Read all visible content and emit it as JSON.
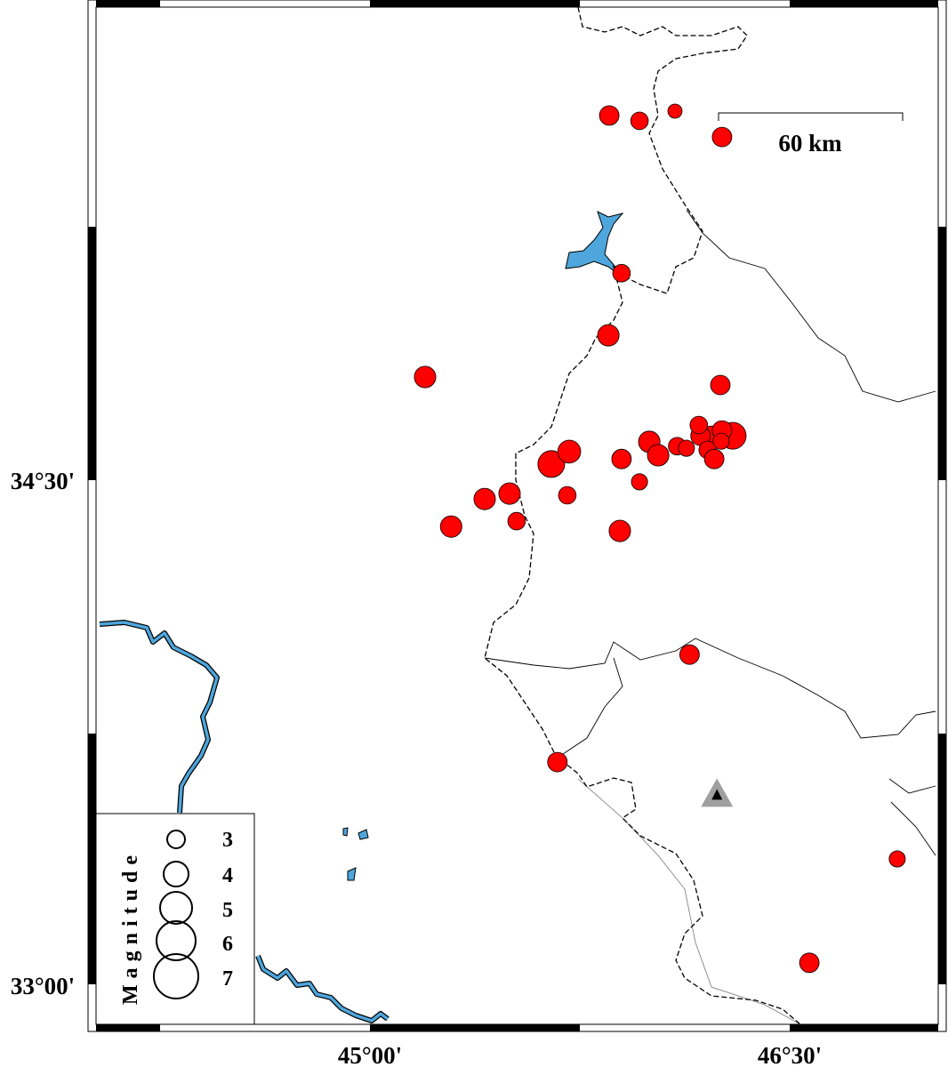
{
  "map": {
    "frame": {
      "lon_range": [
        44.0,
        47.0
      ],
      "lat_range": [
        32.88,
        35.91
      ]
    },
    "axis_labels": {
      "x": [
        {
          "lon": 45.0,
          "text": "45°00'"
        },
        {
          "lon": 46.5,
          "text": "46°30'"
        }
      ],
      "y": [
        {
          "lat": 34.5,
          "text": "34°30'"
        },
        {
          "lat": 33.0,
          "text": "33°00'"
        }
      ]
    },
    "scale_bar": {
      "label": "60 km",
      "length_km": 60
    },
    "legend": {
      "title": "Magnitude",
      "magnitudes": [
        "3",
        "4",
        "5",
        "6",
        "7"
      ]
    },
    "colors": {
      "event": "#ff0000",
      "water": "#4ea6dc",
      "station": "#a0a0a0"
    },
    "station": {
      "lon": 46.24,
      "lat": 33.565,
      "icon": "triangle-icon"
    },
    "events": [
      {
        "lon": 45.855,
        "lat": 35.585,
        "mag": 3.0
      },
      {
        "lon": 45.963,
        "lat": 35.569,
        "mag": 2.7
      },
      {
        "lon": 46.09,
        "lat": 35.598,
        "mag": 2.2
      },
      {
        "lon": 46.258,
        "lat": 35.521,
        "mag": 3.0
      },
      {
        "lon": 45.899,
        "lat": 35.116,
        "mag": 2.7
      },
      {
        "lon": 45.852,
        "lat": 34.931,
        "mag": 3.3
      },
      {
        "lon": 45.197,
        "lat": 34.807,
        "mag": 3.3
      },
      {
        "lon": 46.252,
        "lat": 34.783,
        "mag": 3.0
      },
      {
        "lon": 45.648,
        "lat": 34.548,
        "mag": 4.1
      },
      {
        "lon": 45.712,
        "lat": 34.585,
        "mag": 3.5
      },
      {
        "lon": 45.899,
        "lat": 34.563,
        "mag": 3.0
      },
      {
        "lon": 45.998,
        "lat": 34.614,
        "mag": 3.3
      },
      {
        "lon": 46.03,
        "lat": 34.574,
        "mag": 3.3
      },
      {
        "lon": 45.963,
        "lat": 34.495,
        "mag": 2.5
      },
      {
        "lon": 45.41,
        "lat": 34.444,
        "mag": 3.3
      },
      {
        "lon": 45.499,
        "lat": 34.46,
        "mag": 3.3
      },
      {
        "lon": 45.705,
        "lat": 34.455,
        "mag": 2.7
      },
      {
        "lon": 45.524,
        "lat": 34.378,
        "mag": 2.7
      },
      {
        "lon": 45.29,
        "lat": 34.362,
        "mag": 3.3
      },
      {
        "lon": 45.893,
        "lat": 34.349,
        "mag": 3.3
      },
      {
        "lon": 46.098,
        "lat": 34.601,
        "mag": 2.7
      },
      {
        "lon": 46.131,
        "lat": 34.595,
        "mag": 2.5
      },
      {
        "lon": 46.296,
        "lat": 34.632,
        "mag": 4.1
      },
      {
        "lon": 46.22,
        "lat": 34.627,
        "mag": 3.5
      },
      {
        "lon": 46.181,
        "lat": 34.632,
        "mag": 3.0
      },
      {
        "lon": 46.207,
        "lat": 34.59,
        "mag": 2.7
      },
      {
        "lon": 46.23,
        "lat": 34.563,
        "mag": 3.0
      },
      {
        "lon": 46.258,
        "lat": 34.648,
        "mag": 3.0
      },
      {
        "lon": 46.175,
        "lat": 34.664,
        "mag": 2.7
      },
      {
        "lon": 46.255,
        "lat": 34.616,
        "mag": 2.5
      },
      {
        "lon": 46.142,
        "lat": 33.981,
        "mag": 3.0
      },
      {
        "lon": 45.67,
        "lat": 33.661,
        "mag": 3.0
      },
      {
        "lon": 46.884,
        "lat": 33.373,
        "mag": 2.5
      },
      {
        "lon": 46.57,
        "lat": 33.064,
        "mag": 3.0
      }
    ]
  }
}
